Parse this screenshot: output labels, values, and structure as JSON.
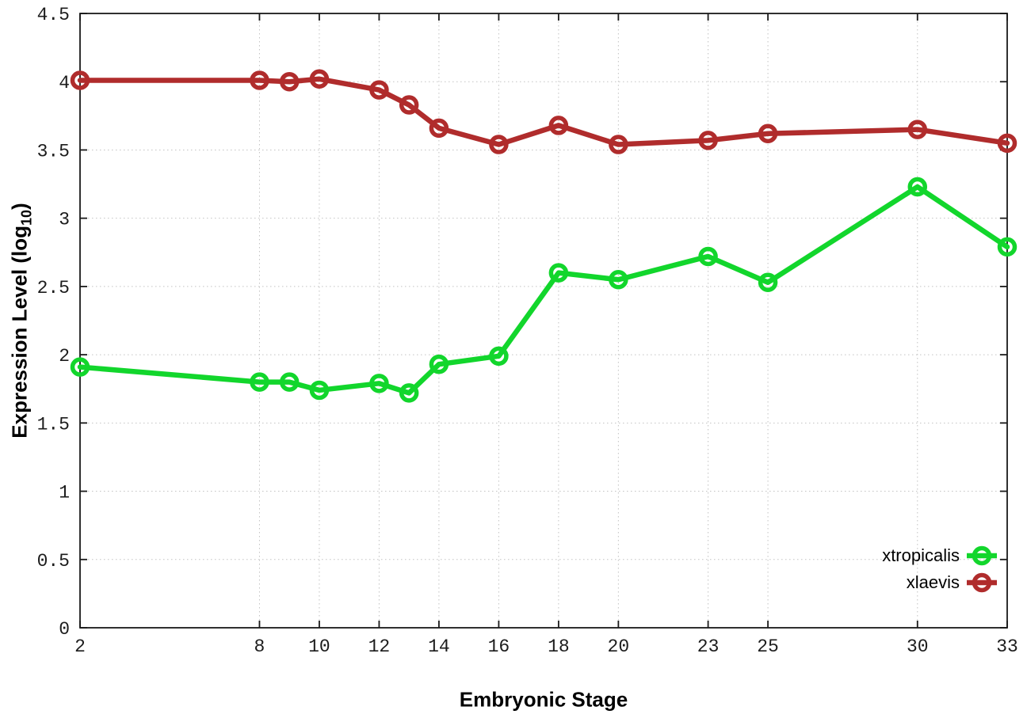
{
  "figure": {
    "background": "#ffffff",
    "axis_color": "#1a1a1a",
    "grid_color": "#c2c2c2",
    "tick_label_color": "#1c1c1c"
  },
  "chart_data": {
    "type": "line",
    "title": "",
    "xlabel": "Embryonic Stage",
    "ylabel": "Expression Level (log10)",
    "ylabel_parts": {
      "main": "Expression Level (log",
      "sub": "10",
      "close": ")"
    },
    "xlim": [
      2,
      33
    ],
    "ylim": [
      0,
      4.5
    ],
    "grid": true,
    "legend_position": "bottom-right",
    "x_ticks": [
      2,
      8,
      10,
      12,
      14,
      16,
      18,
      20,
      23,
      25,
      30,
      33
    ],
    "x_tick_labels": [
      "2",
      "8",
      "10",
      "12",
      "14",
      "16",
      "18",
      "20",
      "23",
      "25",
      "30",
      "33"
    ],
    "y_ticks": [
      0,
      0.5,
      1,
      1.5,
      2,
      2.5,
      3,
      3.5,
      4,
      4.5
    ],
    "y_tick_labels": [
      "0",
      "0.5",
      "1",
      "1.5",
      "2",
      "2.5",
      "3",
      "3.5",
      "4",
      "4.5"
    ],
    "x": [
      2,
      8,
      9,
      10,
      12,
      13,
      14,
      16,
      18,
      20,
      23,
      25,
      30,
      33
    ],
    "series": [
      {
        "name": "xtropicalis",
        "color": "#12d62c",
        "values": [
          1.91,
          1.8,
          1.8,
          1.74,
          1.79,
          1.72,
          1.93,
          1.99,
          2.6,
          2.55,
          2.72,
          2.53,
          3.23,
          2.79
        ]
      },
      {
        "name": "xlaevis",
        "color": "#b02c2c",
        "values": [
          4.01,
          4.01,
          4.0,
          4.02,
          3.94,
          3.83,
          3.66,
          3.54,
          3.68,
          3.54,
          3.57,
          3.62,
          3.65,
          3.55
        ]
      }
    ]
  }
}
